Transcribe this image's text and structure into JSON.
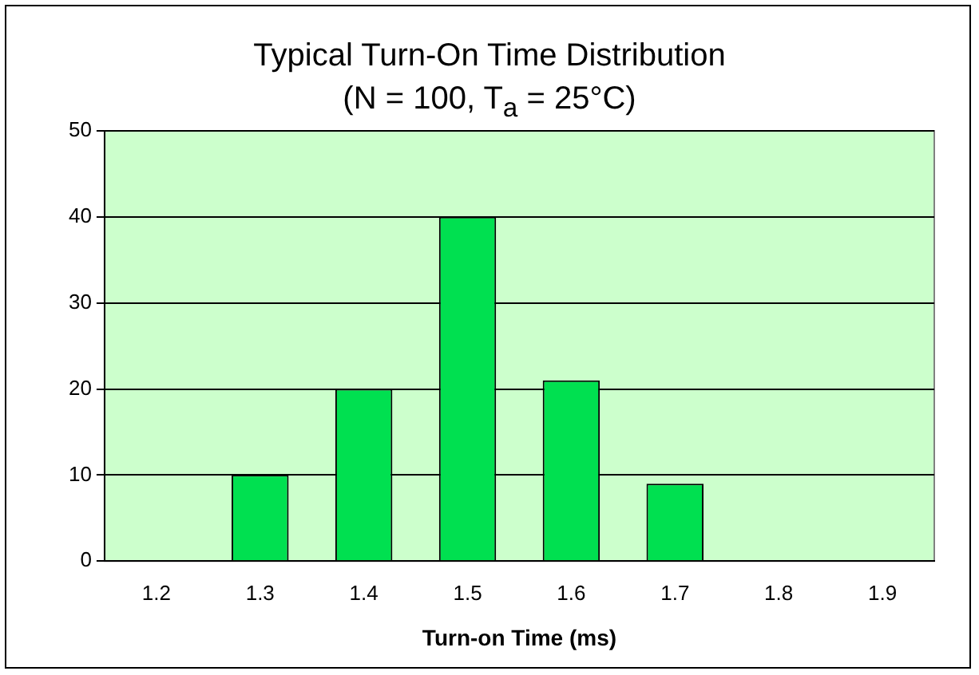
{
  "chart_data": {
    "type": "bar",
    "title": "Typical Turn-On Time Distribution",
    "subtitle": "(N = 100, T$_{a}$ = 25°C)",
    "xlabel": "Turn-on Time (ms)",
    "categories": [
      "1.2",
      "1.3",
      "1.4",
      "1.5",
      "1.6",
      "1.7",
      "1.8",
      "1.9"
    ],
    "values": [
      0,
      10,
      20,
      40,
      21,
      9,
      0,
      0
    ],
    "color": "#00e050",
    "ylim": [
      0,
      50
    ],
    "yticks": [
      0,
      10,
      20,
      30,
      40,
      50
    ],
    "grid": "y",
    "legend": false
  }
}
